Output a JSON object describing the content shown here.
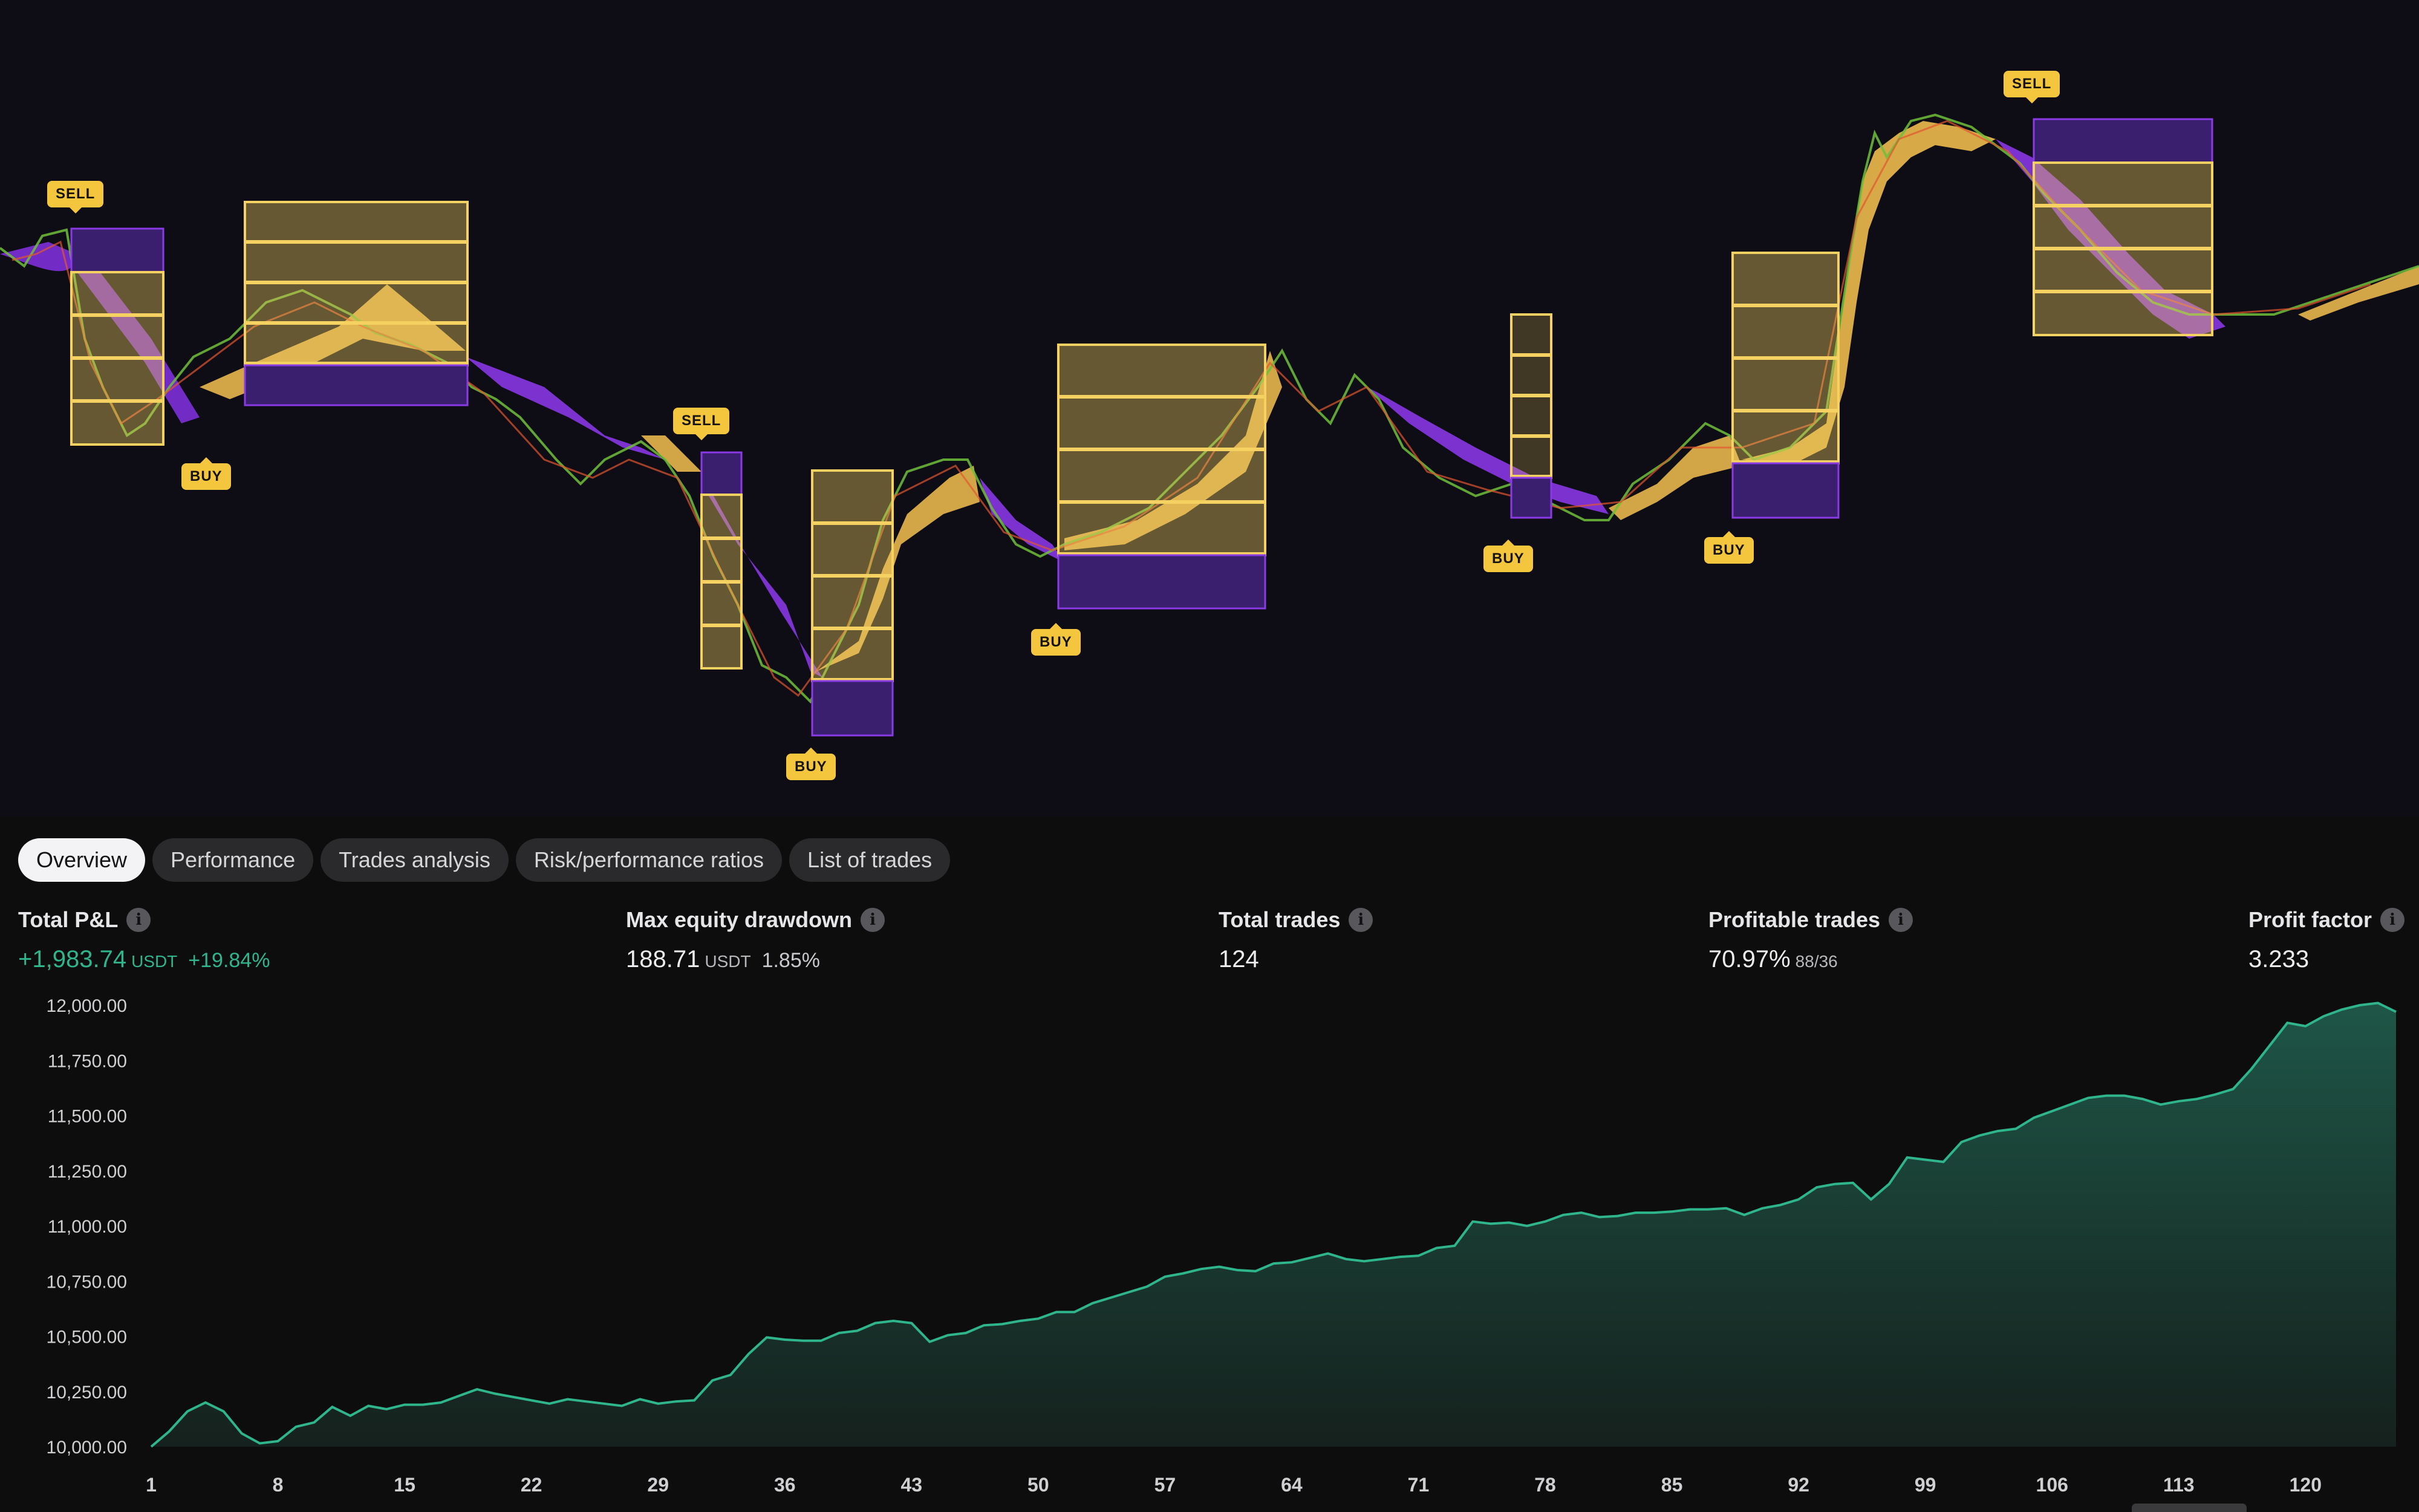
{
  "tabs": [
    "Overview",
    "Performance",
    "Trades analysis",
    "Risk/performance ratios",
    "List of trades"
  ],
  "active_tab": 0,
  "signals": [
    {
      "type": "sell",
      "label": "SELL"
    },
    {
      "type": "buy",
      "label": "BUY"
    },
    {
      "type": "sell",
      "label": "SELL"
    },
    {
      "type": "buy",
      "label": "BUY"
    },
    {
      "type": "buy",
      "label": "BUY"
    },
    {
      "type": "buy",
      "label": "BUY"
    },
    {
      "type": "buy",
      "label": "BUY"
    },
    {
      "type": "sell",
      "label": "SELL"
    }
  ],
  "metrics": {
    "total_pnl": {
      "label": "Total P&L",
      "value": "+1,983.74",
      "unit": "USDT",
      "extra": "+19.84%"
    },
    "max_drawdown": {
      "label": "Max equity drawdown",
      "value": "188.71",
      "unit": "USDT",
      "extra": "1.85%"
    },
    "total_trades": {
      "label": "Total trades",
      "value": "124"
    },
    "profitable_trades": {
      "label": "Profitable trades",
      "value": "70.97%",
      "extra": "88/36"
    },
    "profit_factor": {
      "label": "Profit factor",
      "value": "3.233"
    }
  },
  "colors": {
    "accent": "#2fb58b",
    "signal": "#f4c63e",
    "zone_purple": "#8a3be6",
    "zone_gold": "#f4d160"
  },
  "chart_data": {
    "type": "area",
    "ylim": [
      10000,
      12000
    ],
    "y_ticks": [
      10000,
      10250,
      10500,
      10750,
      11000,
      11250,
      11500,
      11750,
      12000
    ],
    "y_tick_labels": [
      "10,000.00",
      "10,250.00",
      "10,500.00",
      "10,750.00",
      "11,000.00",
      "11,250.00",
      "11,500.00",
      "11,750.00",
      "12,000.00"
    ],
    "x_ticks": [
      1,
      8,
      15,
      22,
      29,
      36,
      43,
      50,
      57,
      64,
      71,
      78,
      85,
      92,
      99,
      106,
      113,
      120
    ],
    "xlim": [
      1,
      125
    ],
    "series": [
      {
        "x": [
          1,
          2,
          3,
          4,
          5,
          6,
          7,
          8,
          9,
          10,
          11,
          12,
          13,
          14,
          15,
          16,
          17,
          18,
          19,
          20,
          21,
          22,
          23,
          24,
          25,
          26,
          27,
          28,
          29,
          30,
          31,
          32,
          33,
          34,
          35,
          36,
          37,
          38,
          39,
          40,
          41,
          42,
          43,
          44,
          45,
          46,
          47,
          48,
          49,
          50,
          51,
          52,
          53,
          54,
          55,
          56,
          57,
          58,
          59,
          60,
          61,
          62,
          63,
          64,
          65,
          66,
          67,
          68,
          69,
          70,
          71,
          72,
          73,
          74,
          75,
          76,
          77,
          78,
          79,
          80,
          81,
          82,
          83,
          84,
          85,
          86,
          87,
          88,
          89,
          90,
          91,
          92,
          93,
          94,
          95,
          96,
          97,
          98,
          99,
          100,
          101,
          102,
          103,
          104,
          105,
          106,
          107,
          108,
          109,
          110,
          111,
          112,
          113,
          114,
          115,
          116,
          117,
          118,
          119,
          120,
          121,
          122,
          123,
          124,
          125
        ],
        "values": [
          10000,
          10070,
          10160,
          10200,
          10160,
          10060,
          10015,
          10025,
          10090,
          10110,
          10180,
          10140,
          10185,
          10170,
          10190,
          10190,
          10200,
          10230,
          10260,
          10240,
          10225,
          10210,
          10195,
          10215,
          10205,
          10195,
          10185,
          10215,
          10195,
          10205,
          10210,
          10300,
          10325,
          10420,
          10495,
          10485,
          10480,
          10480,
          10515,
          10525,
          10560,
          10570,
          10560,
          10475,
          10505,
          10515,
          10550,
          10555,
          10570,
          10580,
          10610,
          10610,
          10650,
          10675,
          10700,
          10725,
          10770,
          10785,
          10805,
          10815,
          10800,
          10795,
          10830,
          10835,
          10855,
          10875,
          10850,
          10840,
          10850,
          10860,
          10865,
          10900,
          10910,
          11020,
          11010,
          11015,
          11000,
          11020,
          11050,
          11060,
          11040,
          11045,
          11060,
          11060,
          11065,
          11075,
          11075,
          11080,
          11050,
          11080,
          11095,
          11120,
          11175,
          11190,
          11195,
          11120,
          11190,
          11310,
          11300,
          11290,
          11380,
          11410,
          11430,
          11440,
          11490,
          11520,
          11550,
          11580,
          11590,
          11590,
          11575,
          11550,
          11565,
          11575,
          11595,
          11620,
          11710,
          11815,
          11920,
          11905,
          11950,
          11980,
          12000,
          12010,
          11970
        ]
      }
    ]
  }
}
